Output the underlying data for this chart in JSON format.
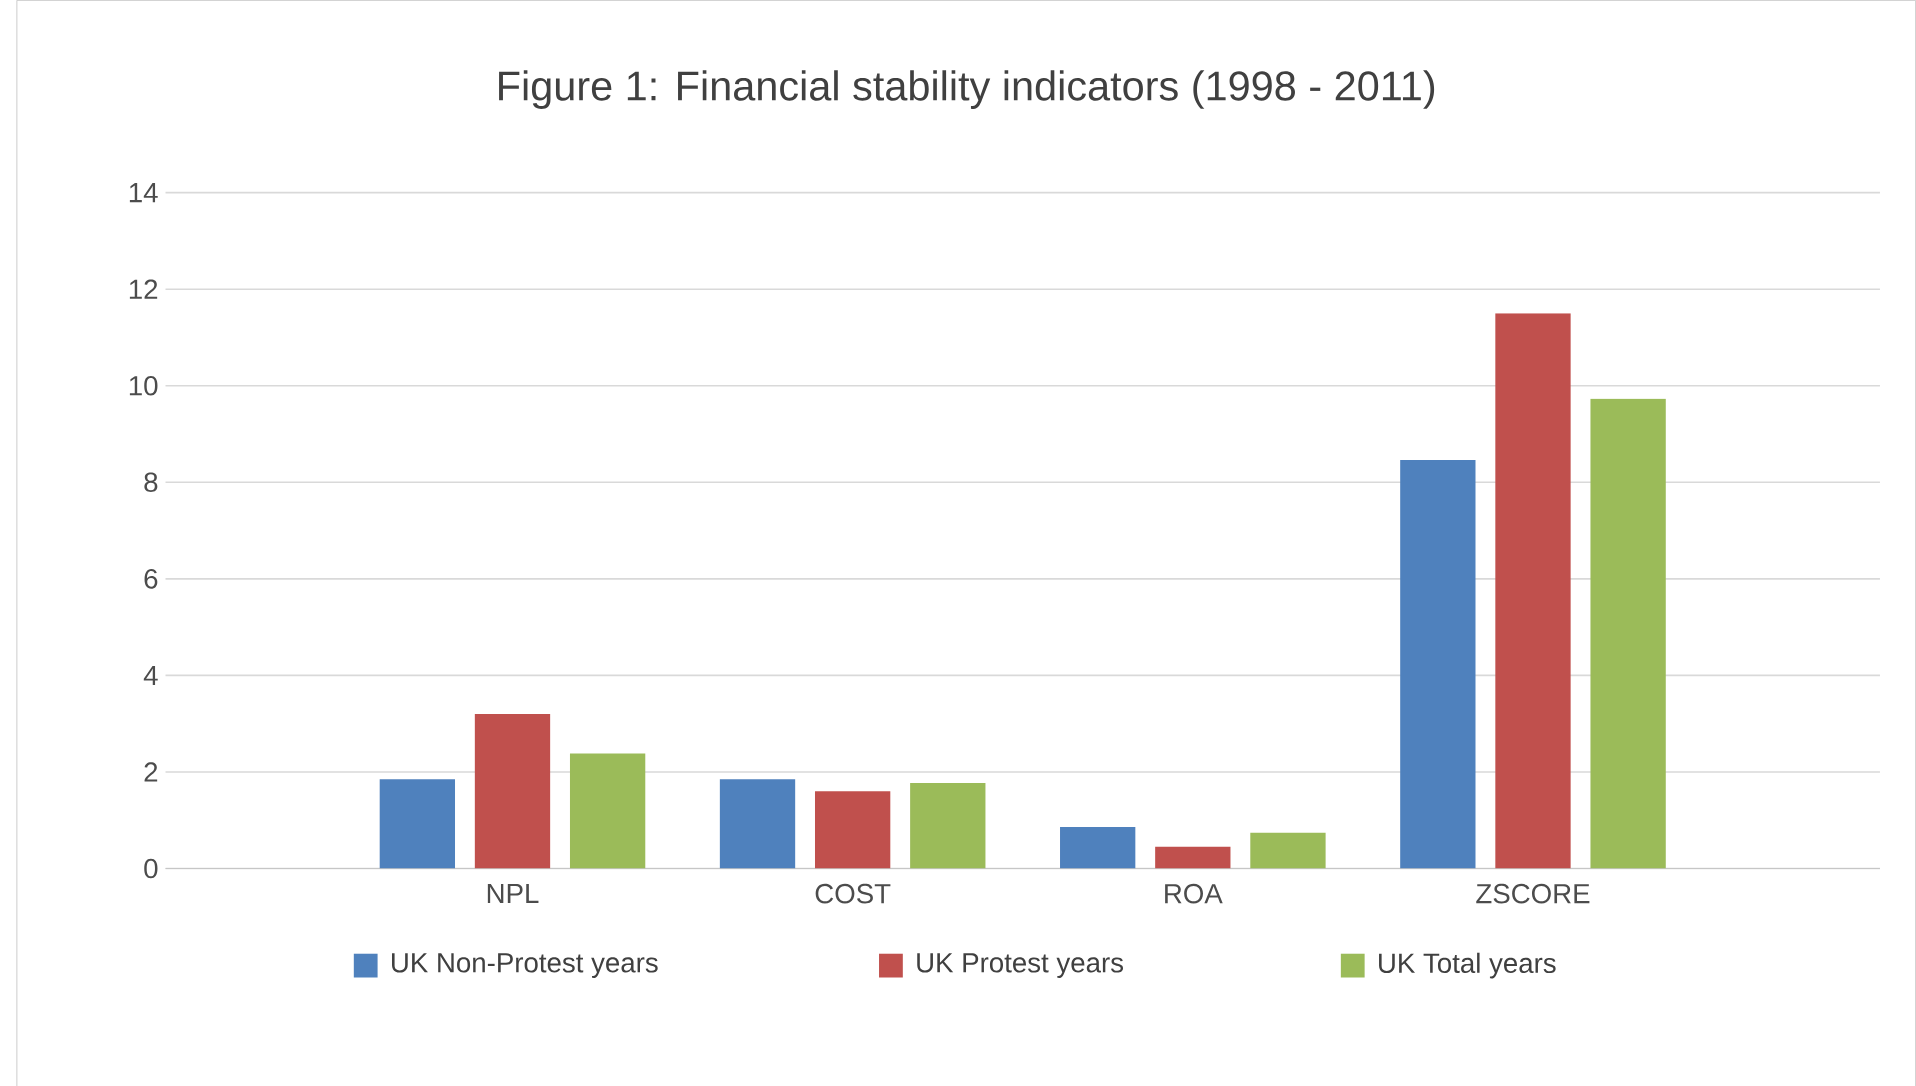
{
  "chart_data": {
    "type": "bar",
    "title": "Figure 1: Financial stability indicators (1998 - 2011)",
    "categories": [
      "NPL",
      "COST",
      "ROA",
      "ZSCORE"
    ],
    "series": [
      {
        "name": "UK Non-Protest years",
        "color": "#4f81bd",
        "values": [
          1.85,
          1.85,
          0.86,
          8.46
        ]
      },
      {
        "name": "UK Protest years",
        "color": "#c0504d",
        "values": [
          3.2,
          1.6,
          0.45,
          11.5
        ]
      },
      {
        "name": "UK Total years",
        "color": "#9bbb59",
        "values": [
          2.38,
          1.77,
          0.74,
          9.73
        ]
      }
    ],
    "ylim": [
      0,
      14
    ],
    "yticks": [
      0,
      2,
      4,
      6,
      8,
      10,
      12,
      14
    ],
    "grid": "y",
    "legend": "bottom"
  }
}
